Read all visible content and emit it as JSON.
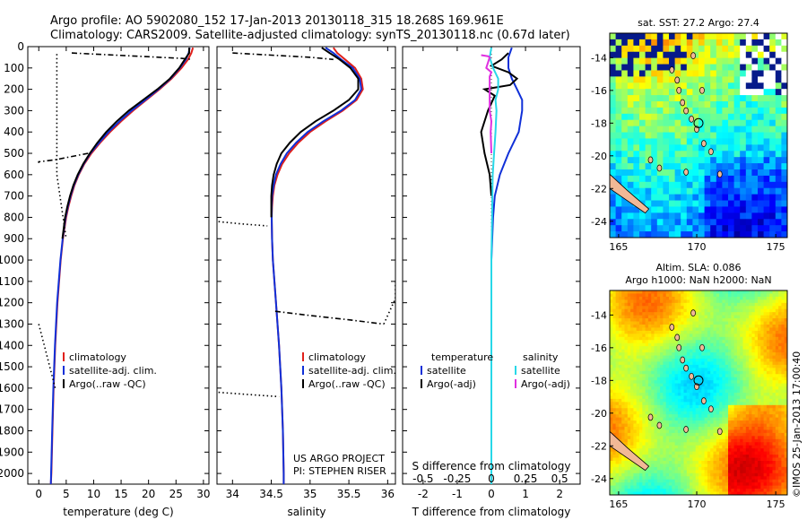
{
  "header": {
    "line1": "Argo profile: AO 5902080_152 17-Jan-2013 20130118_315 18.268S 169.961E",
    "line2": "Climatology: CARS2009. Satellite-adjusted climatology: synTS_20130118.nc (0.67d later)"
  },
  "colors": {
    "climatology": "#e0201b",
    "satellite": "#1030d8",
    "argo": "#000000",
    "cyan": "#28d8e8",
    "magenta": "#e030e0"
  },
  "depth_axis": {
    "min": 0,
    "max": 2050,
    "ticks": [
      0,
      100,
      200,
      300,
      400,
      500,
      600,
      700,
      800,
      900,
      1000,
      1100,
      1200,
      1300,
      1400,
      1500,
      1600,
      1700,
      1800,
      1900,
      2000
    ]
  },
  "chart_data": [
    {
      "type": "line",
      "panel": "temperature",
      "xlabel": "temperature (deg C)",
      "xlim": [
        -2,
        31
      ],
      "xticks": [
        0,
        5,
        10,
        15,
        20,
        25,
        30
      ],
      "ylabel": "depth",
      "ylim": [
        2050,
        0
      ],
      "legend": [
        "climatology",
        "satellite-adj. clim.",
        "Argo(..raw -QC)"
      ],
      "series": [
        {
          "name": "climatology",
          "depth": [
            5,
            30,
            60,
            100,
            150,
            200,
            250,
            300,
            350,
            400,
            450,
            500,
            550,
            600,
            650,
            700,
            750,
            800,
            900,
            1000,
            1200,
            1400,
            1600,
            1800,
            2000,
            2050
          ],
          "values": [
            28.1,
            27.8,
            27.2,
            26.0,
            24.2,
            22.0,
            19.6,
            17.2,
            15.0,
            13.0,
            11.2,
            9.6,
            8.3,
            7.3,
            6.5,
            5.9,
            5.4,
            5.0,
            4.4,
            4.0,
            3.4,
            3.0,
            2.7,
            2.5,
            2.3,
            2.2
          ]
        },
        {
          "name": "satellite-adj. clim.",
          "depth": [
            5,
            30,
            60,
            100,
            150,
            200,
            250,
            300,
            350,
            400,
            450,
            500,
            550,
            600,
            650,
            700,
            750,
            800,
            900,
            1000,
            1200,
            1400,
            1600,
            1800,
            2000,
            2050
          ],
          "values": [
            27.5,
            27.3,
            26.8,
            25.7,
            24.0,
            21.8,
            19.4,
            16.9,
            14.7,
            12.7,
            11.0,
            9.4,
            8.2,
            7.2,
            6.4,
            5.8,
            5.3,
            4.9,
            4.35,
            3.95,
            3.35,
            2.95,
            2.65,
            2.45,
            2.25,
            2.2
          ]
        },
        {
          "name": "Argo(..raw -QC)",
          "depth": [
            5,
            30,
            60,
            100,
            150,
            200,
            250,
            300,
            350,
            400,
            450,
            500,
            550,
            600,
            650,
            700,
            750,
            800,
            900
          ],
          "values": [
            27.4,
            27.4,
            26.6,
            25.6,
            23.9,
            21.6,
            19.0,
            16.4,
            14.2,
            12.3,
            10.7,
            9.3,
            8.1,
            7.1,
            6.3,
            5.7,
            5.2,
            4.8,
            4.3
          ]
        },
        {
          "name": "Argo raw flagged",
          "style": "dashdot",
          "depth": [
            30,
            35,
            40,
            45,
            50,
            55,
            60
          ],
          "values": [
            6,
            10,
            14,
            18,
            22,
            26,
            28
          ]
        },
        {
          "name": "Argo raw flagged",
          "style": "dashdot",
          "depth": [
            500,
            510,
            520,
            530,
            540,
            545
          ],
          "values": [
            9,
            7,
            5,
            3,
            0,
            0
          ]
        },
        {
          "name": "Argo raw flagged",
          "style": "dotted",
          "depth": [
            35,
            600,
            900
          ],
          "values": [
            3.3,
            3.3,
            5
          ]
        },
        {
          "name": "Argo raw flagged",
          "style": "dotted",
          "depth": [
            1300,
            1400,
            1500,
            1600
          ],
          "values": [
            0,
            1,
            2,
            3
          ]
        }
      ]
    },
    {
      "type": "line",
      "panel": "salinity",
      "xlabel": "salinity",
      "xlim": [
        33.8,
        36.1
      ],
      "xticks": [
        34,
        34.5,
        35,
        35.5,
        36
      ],
      "ylabel": "depth",
      "ylim": [
        2050,
        0
      ],
      "legend": [
        "climatology",
        "satellite-adj. clim.",
        "Argo(..raw -QC)"
      ],
      "series": [
        {
          "name": "climatology",
          "depth": [
            5,
            30,
            60,
            100,
            150,
            200,
            250,
            300,
            350,
            400,
            450,
            500,
            550,
            600,
            650,
            700,
            750,
            800,
            900,
            1000,
            1200,
            1400,
            1600,
            1800,
            2000,
            2050
          ],
          "values": [
            35.3,
            35.35,
            35.45,
            35.58,
            35.66,
            35.68,
            35.6,
            35.42,
            35.2,
            35.0,
            34.85,
            34.73,
            34.64,
            34.58,
            34.54,
            34.52,
            34.51,
            34.505,
            34.51,
            34.52,
            34.56,
            34.6,
            34.63,
            34.65,
            34.66,
            34.66
          ]
        },
        {
          "name": "satellite-adj. clim.",
          "depth": [
            5,
            30,
            60,
            100,
            150,
            200,
            250,
            300,
            350,
            400,
            450,
            500,
            550,
            600,
            650,
            700,
            750,
            800,
            900,
            1000,
            1200,
            1400,
            1600,
            1800,
            2000,
            2050
          ],
          "values": [
            35.2,
            35.3,
            35.4,
            35.55,
            35.64,
            35.66,
            35.58,
            35.4,
            35.17,
            34.97,
            34.82,
            34.7,
            34.62,
            34.56,
            34.53,
            34.51,
            34.505,
            34.505,
            34.51,
            34.52,
            34.56,
            34.6,
            34.63,
            34.65,
            34.66,
            34.66
          ]
        },
        {
          "name": "Argo(..raw -QC)",
          "depth": [
            5,
            30,
            60,
            100,
            150,
            200,
            250,
            300,
            350,
            400,
            450,
            500,
            550,
            600,
            650,
            700,
            750,
            800
          ],
          "values": [
            35.15,
            35.25,
            35.38,
            35.52,
            35.62,
            35.62,
            35.5,
            35.3,
            35.07,
            34.88,
            34.74,
            34.63,
            34.57,
            34.53,
            34.51,
            34.5,
            34.5,
            34.5
          ]
        },
        {
          "name": "Argo raw flagged",
          "style": "dashdot",
          "depth": [
            30,
            40,
            50,
            60
          ],
          "values": [
            34.0,
            34.5,
            35.0,
            35.3
          ]
        },
        {
          "name": "Argo raw flagged",
          "style": "dotted",
          "depth": [
            820,
            830,
            840
          ],
          "values": [
            33.82,
            34.1,
            34.45
          ]
        },
        {
          "name": "Argo raw flagged",
          "style": "dashdot",
          "depth": [
            1240,
            1260,
            1280,
            1300
          ],
          "values": [
            34.55,
            35.0,
            35.5,
            35.95
          ]
        },
        {
          "name": "Argo raw flagged",
          "style": "dotted",
          "depth": [
            1300,
            1180,
            1100
          ],
          "values": [
            35.95,
            36.1,
            36.1
          ]
        },
        {
          "name": "Argo raw flagged",
          "style": "dotted",
          "depth": [
            1620,
            1630,
            1640
          ],
          "values": [
            33.82,
            34.2,
            34.6
          ]
        }
      ],
      "annotations": [
        "US ARGO PROJECT",
        "PI: STEPHEN RISER"
      ]
    },
    {
      "type": "line",
      "panel": "difference",
      "xlabel": "T difference from climatology",
      "xlabel2": "S difference from climatology",
      "xlim": [
        -2.6,
        2.6
      ],
      "xticks": [
        -2,
        -1,
        0,
        1,
        2
      ],
      "xticks2": [
        -0.5,
        -0.25,
        0,
        0.25,
        0.5
      ],
      "ylabel": "depth",
      "ylim": [
        2050,
        0
      ],
      "legend": {
        "temperature": [
          "satellite",
          "Argo(-adj)"
        ],
        "salinity": [
          "satellite",
          "Argo(-adj)"
        ]
      },
      "series": [
        {
          "name": "T satellite",
          "depth": [
            5,
            50,
            100,
            150,
            200,
            250,
            300,
            400,
            500,
            600,
            700,
            800,
            1000,
            1200,
            1400,
            1600,
            1800,
            2000,
            2050
          ],
          "values": [
            0.6,
            0.5,
            0.5,
            0.6,
            0.75,
            0.9,
            0.9,
            0.8,
            0.5,
            0.25,
            0.1,
            0.05,
            0.0,
            0.0,
            0.0,
            0.0,
            0.0,
            0.0,
            0.0
          ]
        },
        {
          "name": "T Argo(-adj)",
          "depth": [
            30,
            60,
            90,
            120,
            150,
            180,
            200,
            230,
            300,
            400,
            500,
            600,
            700
          ],
          "values": [
            0.5,
            0.3,
            0.0,
            0.5,
            0.75,
            0.55,
            -0.2,
            0.1,
            -0.1,
            -0.3,
            -0.2,
            -0.05,
            0.0
          ]
        },
        {
          "name": "S satellite",
          "depth": [
            5,
            50,
            100,
            150,
            200,
            250,
            300,
            400,
            500,
            600,
            700,
            800,
            1000,
            1200,
            1400,
            1600,
            1800,
            2000,
            2050
          ],
          "values": [
            0.0,
            -0.05,
            0.05,
            0.2,
            0.2,
            0.12,
            0.15,
            0.12,
            0.08,
            0.04,
            0.03,
            0.02,
            0.0,
            0.0,
            0.0,
            0.0,
            0.0,
            0.0,
            0.0
          ]
        },
        {
          "name": "S Argo(-adj)",
          "depth": [
            40,
            45,
            50,
            100,
            120,
            140,
            300,
            350,
            400,
            500
          ],
          "values": [
            -0.3,
            -0.1,
            -0.05,
            -0.15,
            0.0,
            -0.05,
            -0.05,
            0.0,
            -0.02,
            0.0
          ]
        }
      ]
    }
  ],
  "maps": [
    {
      "title": "sat. SST: 27.2  Argo: 27.4",
      "xticks": [
        "165",
        "170",
        "175"
      ],
      "yticks": [
        "-14",
        "-16",
        "-18",
        "-20",
        "-22",
        "-24"
      ]
    },
    {
      "title": "Altim. SLA: 0.086",
      "subtitle": "Argo h1000: NaN h2000: NaN",
      "xticks": [
        "165",
        "170",
        "175"
      ],
      "yticks": [
        "-14",
        "-16",
        "-18",
        "-20",
        "-22",
        "-24"
      ]
    }
  ],
  "side_label": "©IMOS 25-Jan-2013 17:00:40"
}
